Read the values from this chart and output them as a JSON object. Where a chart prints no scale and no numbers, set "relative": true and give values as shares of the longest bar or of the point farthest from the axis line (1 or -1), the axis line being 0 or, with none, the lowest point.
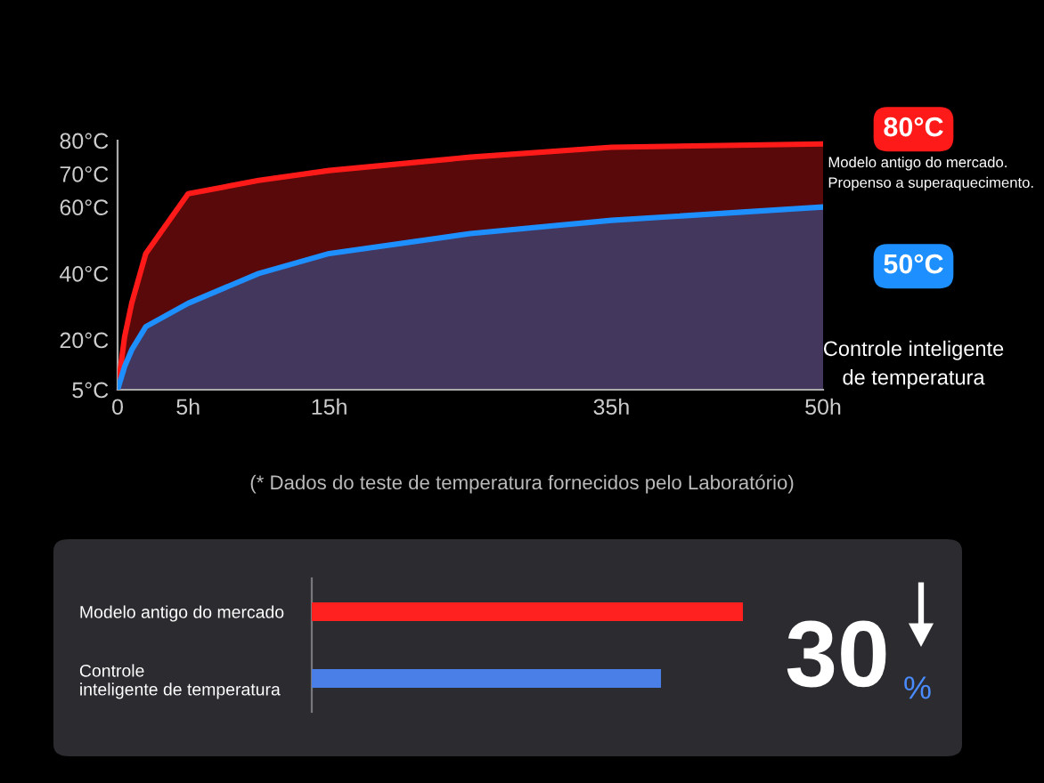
{
  "chart_data": [
    {
      "type": "area",
      "x": [
        0,
        0.5,
        1,
        2,
        5,
        10,
        15,
        25,
        35,
        50
      ],
      "series": [
        {
          "name": "Modelo antigo do mercado.\nPropenso a superaquecimento.",
          "color": "#ff1a1a",
          "values": [
            5,
            21,
            31,
            46,
            64,
            68,
            71,
            75,
            78,
            79
          ]
        },
        {
          "name": "Controle inteligente\nde temperatura",
          "color": "#1e8fff",
          "values": [
            5,
            12,
            17,
            24,
            31,
            40,
            46,
            52,
            56,
            60
          ]
        }
      ],
      "xlim": [
        0,
        50
      ],
      "ylim": [
        5,
        80
      ],
      "xticks": [
        0,
        {
          "value": 5,
          "label": "5h"
        },
        {
          "value": 15,
          "label": "15h"
        },
        {
          "value": 35,
          "label": "35h"
        },
        {
          "value": 50,
          "label": "50h"
        }
      ],
      "yticks": [
        {
          "value": 5,
          "label": "5°C"
        },
        {
          "value": 20,
          "label": "20°C"
        },
        {
          "value": 40,
          "label": "40°C"
        },
        {
          "value": 60,
          "label": "60°C"
        },
        {
          "value": 70,
          "label": "70°C"
        },
        {
          "value": 80,
          "label": "80°C"
        }
      ],
      "annotations": [
        "80°C",
        "50°C",
        "(* Dados do teste de temperatura fornecidos pelo Laboratório)"
      ]
    },
    {
      "type": "bar",
      "orientation": "horizontal",
      "relative": true,
      "categories": [
        "Modelo antigo do mercado",
        "Controle\ninteligente de temperatura"
      ],
      "values": [
        1,
        0.81
      ],
      "colors": [
        "#ff2020",
        "#4a7fe8"
      ],
      "annotations": [
        "30",
        "%"
      ]
    }
  ]
}
